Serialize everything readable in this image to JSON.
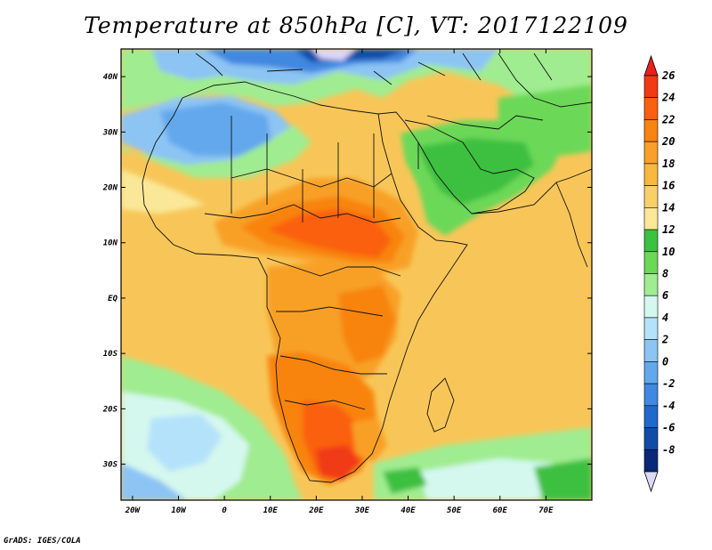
{
  "title": "Temperature at 850hPa [C], VT: 2017122109",
  "footer": "GrADS: IGES/COLA",
  "map": {
    "lat_labels": [
      {
        "label": "40N",
        "lat": 40
      },
      {
        "label": "30N",
        "lat": 30
      },
      {
        "label": "20N",
        "lat": 20
      },
      {
        "label": "10N",
        "lat": 10
      },
      {
        "label": "EQ",
        "lat": 0
      },
      {
        "label": "10S",
        "lat": -10
      },
      {
        "label": "20S",
        "lat": -20
      },
      {
        "label": "30S",
        "lat": -30
      }
    ],
    "lon_labels": [
      {
        "label": "20W",
        "lon": -20
      },
      {
        "label": "10W",
        "lon": -10
      },
      {
        "label": "0",
        "lon": 0
      },
      {
        "label": "10E",
        "lon": 10
      },
      {
        "label": "20E",
        "lon": 20
      },
      {
        "label": "30E",
        "lon": 30
      },
      {
        "label": "40E",
        "lon": 40
      },
      {
        "label": "50E",
        "lon": 50
      },
      {
        "label": "60E",
        "lon": 60
      },
      {
        "label": "70E",
        "lon": 70
      }
    ],
    "lon_range": [
      -22.5,
      80
    ],
    "lat_range": [
      -36.5,
      45
    ]
  },
  "colorbar": {
    "levels": [
      "26",
      "24",
      "22",
      "20",
      "18",
      "16",
      "14",
      "12",
      "10",
      "8",
      "6",
      "4",
      "2",
      "0",
      "-2",
      "-4",
      "-6",
      "-8"
    ],
    "top_color": "#e8221a",
    "bottom_color": "#dcd8f8",
    "bins": [
      "#f03a14",
      "#fa6010",
      "#f88410",
      "#f8a028",
      "#f8b840",
      "#f8d068",
      "#fae898",
      "#3cc040",
      "#6cd858",
      "#a0ec90",
      "#d4f8ee",
      "#b4e2fa",
      "#8cc4f4",
      "#64a8ec",
      "#4088e0",
      "#2068cc",
      "#104ca8",
      "#0a2878"
    ]
  }
}
